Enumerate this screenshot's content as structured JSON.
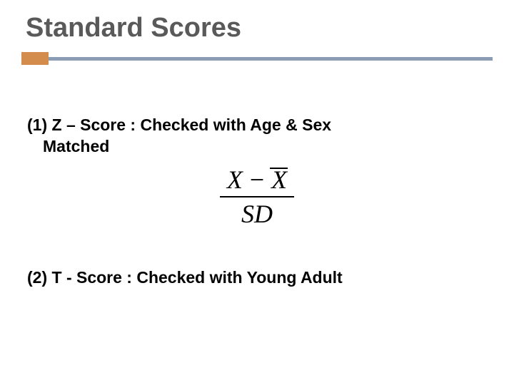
{
  "title": "Standard Scores",
  "divider": {
    "accent_color": "#d38c4b",
    "line_color": "#8b9db5"
  },
  "items": [
    {
      "prefix": "(1) ",
      "label": "Z – Score : Checked with Age & Sex",
      "line2": "Matched"
    },
    {
      "prefix": "(2) ",
      "label": "T - Score : Checked with Young Adult"
    }
  ],
  "formula": {
    "var1": "X",
    "op": "−",
    "var2": "X",
    "denom": "SD"
  },
  "colors": {
    "title": "#595959",
    "text": "#000000",
    "background": "#ffffff"
  },
  "fonts": {
    "title_size": 38,
    "body_size": 23,
    "formula_size": 36
  }
}
